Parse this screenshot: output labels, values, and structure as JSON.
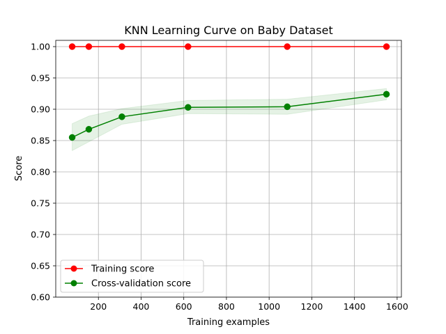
{
  "chart_data": {
    "type": "line",
    "title": "KNN Learning Curve on Baby Dataset",
    "xlabel": "Training examples",
    "ylabel": "Score",
    "xlim": [
      0,
      1620
    ],
    "ylim": [
      0.6,
      1.01
    ],
    "xticks": [
      200,
      400,
      600,
      800,
      1000,
      1200,
      1400,
      1600
    ],
    "xtick_labels": [
      "200",
      "400",
      "600",
      "800",
      "1000",
      "1200",
      "1400",
      "1600"
    ],
    "yticks": [
      0.6,
      0.65,
      0.7,
      0.75,
      0.8,
      0.85,
      0.9,
      0.95,
      1.0
    ],
    "ytick_labels": [
      "0.60",
      "0.65",
      "0.70",
      "0.75",
      "0.80",
      "0.85",
      "0.90",
      "0.95",
      "1.00"
    ],
    "grid": true,
    "legend_position": "lower-left",
    "x": [
      77,
      155,
      310,
      620,
      1085,
      1550
    ],
    "series": [
      {
        "name": "Training score",
        "color": "#ff0000",
        "values": [
          1.0,
          1.0,
          1.0,
          1.0,
          1.0,
          1.0
        ],
        "band_lower": [
          1.0,
          1.0,
          1.0,
          1.0,
          1.0,
          1.0
        ],
        "band_upper": [
          1.0,
          1.0,
          1.0,
          1.0,
          1.0,
          1.0
        ]
      },
      {
        "name": "Cross-validation score",
        "color": "#008000",
        "values": [
          0.855,
          0.868,
          0.888,
          0.903,
          0.904,
          0.924
        ],
        "band_lower": [
          0.834,
          0.848,
          0.876,
          0.893,
          0.892,
          0.915
        ],
        "band_upper": [
          0.877,
          0.889,
          0.901,
          0.914,
          0.916,
          0.933
        ]
      }
    ]
  }
}
